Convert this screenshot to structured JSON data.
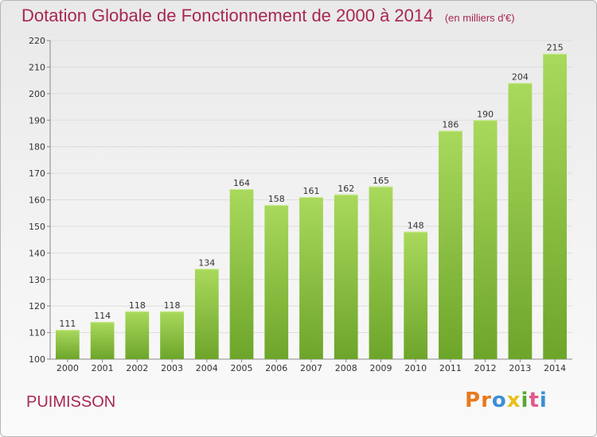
{
  "header": {
    "title": "Dotation Globale de Fonctionnement de 2000 à 2014",
    "subtitle": "(en milliers d'€)"
  },
  "footer": {
    "commune": "PUIMISSON",
    "logo": {
      "letters": [
        "P",
        "r",
        "o",
        "x",
        "i",
        "t",
        "i"
      ],
      "colors": [
        "#e87a1e",
        "#e87a1e",
        "#3c8fd6",
        "#e8c01e",
        "#58a832",
        "#e05a8a",
        "#3c8fd6"
      ]
    }
  },
  "colors": {
    "bar_top": "#a9d95c",
    "bar_bottom": "#6da52a",
    "grid": "#dddddd",
    "title": "#a8284f"
  },
  "chart_data": {
    "type": "bar",
    "categories": [
      "2000",
      "2001",
      "2002",
      "2003",
      "2004",
      "2005",
      "2006",
      "2007",
      "2008",
      "2009",
      "2010",
      "2011",
      "2012",
      "2013",
      "2014"
    ],
    "values": [
      111,
      114,
      118,
      118,
      134,
      164,
      158,
      161,
      162,
      165,
      148,
      186,
      190,
      204,
      215
    ],
    "ylim": [
      100,
      220
    ],
    "yticks": [
      100,
      110,
      120,
      130,
      140,
      150,
      160,
      170,
      180,
      190,
      200,
      210,
      220
    ],
    "grid": true,
    "data_labels": true
  }
}
